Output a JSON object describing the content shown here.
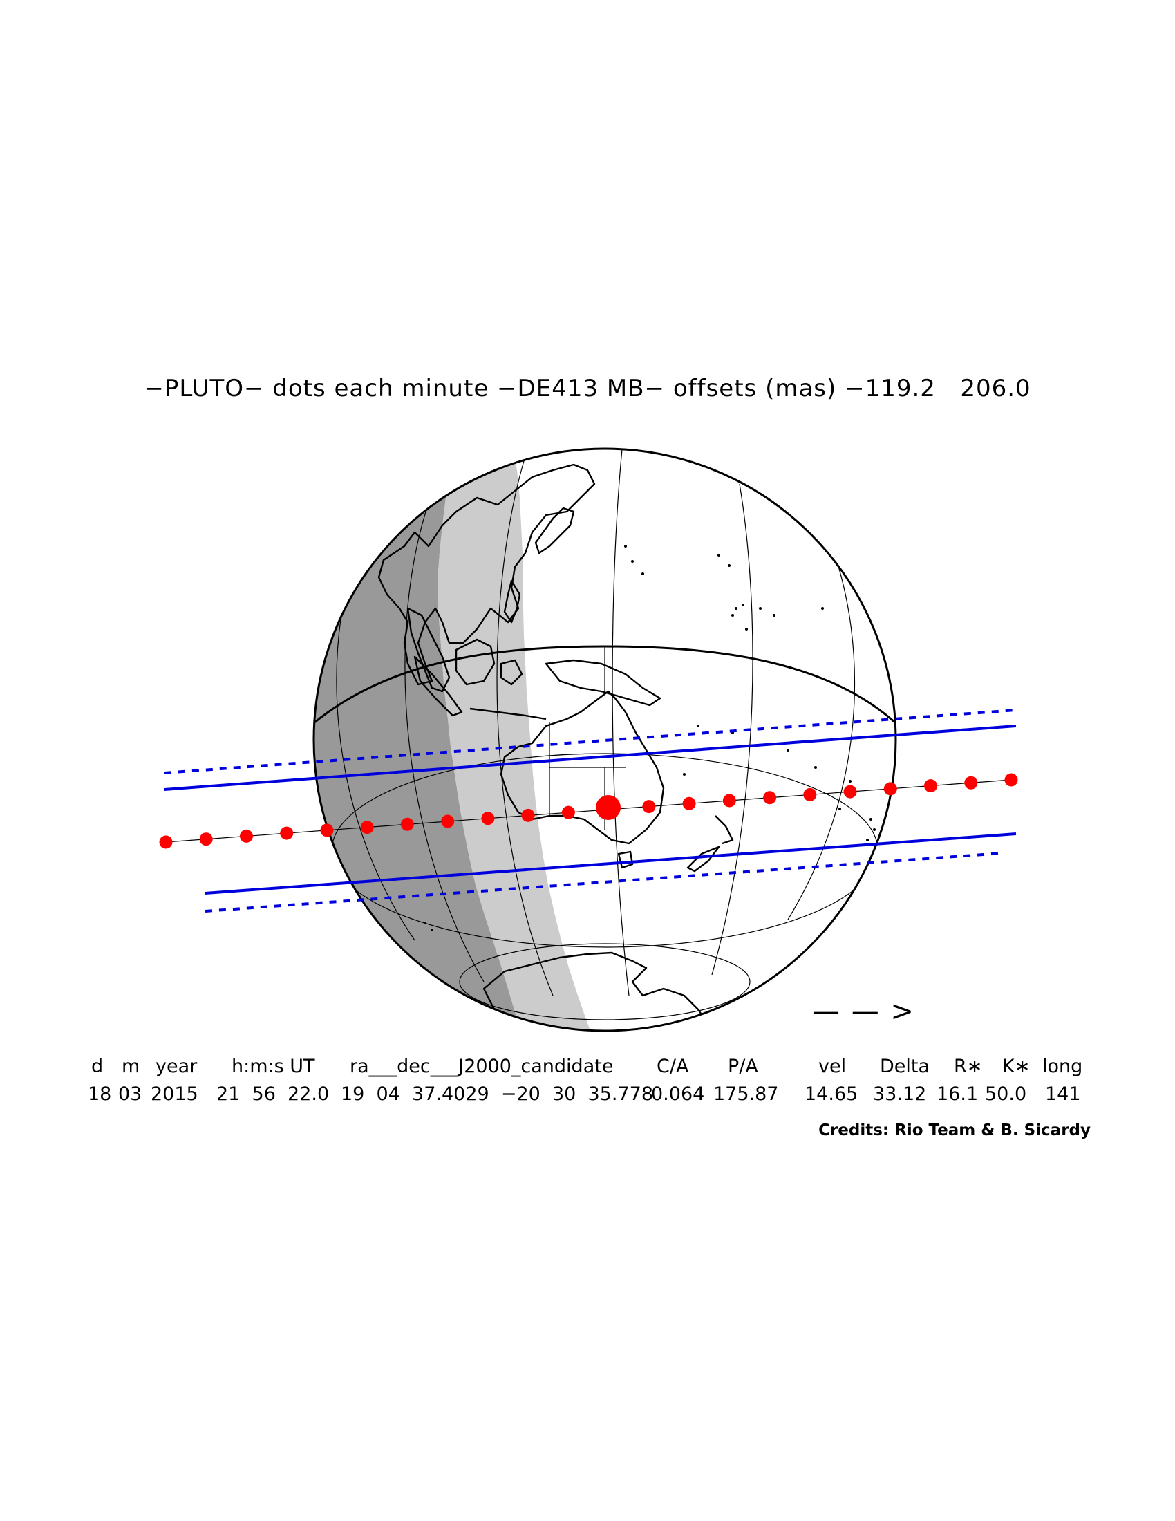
{
  "title": "−PLUTO− dots each minute −DE413 MB− offsets (mas) −119.2   206.0",
  "direction_arrow": "— — >",
  "table": {
    "headers": [
      "d",
      "m",
      "year",
      "h:m:s UT",
      "ra___dec___J2000_candidate",
      "C/A",
      "P/A",
      "vel",
      "Delta",
      "R∗",
      "K∗",
      "long"
    ],
    "values": [
      "18",
      "03",
      "2015",
      "21  56  22.0",
      "19  04  37.4029  −20  30  35.778",
      "0.064",
      "175.87",
      "14.65",
      "33.12",
      "16.1",
      "50.0",
      "141"
    ]
  },
  "credits": "Credits: Rio Team & B. Sicardy",
  "colors": {
    "path_dots": "#ff0000",
    "shadow_limits": "#0000dd",
    "night": "#999999",
    "twilight": "#cccccc",
    "outline": "#000000"
  }
}
